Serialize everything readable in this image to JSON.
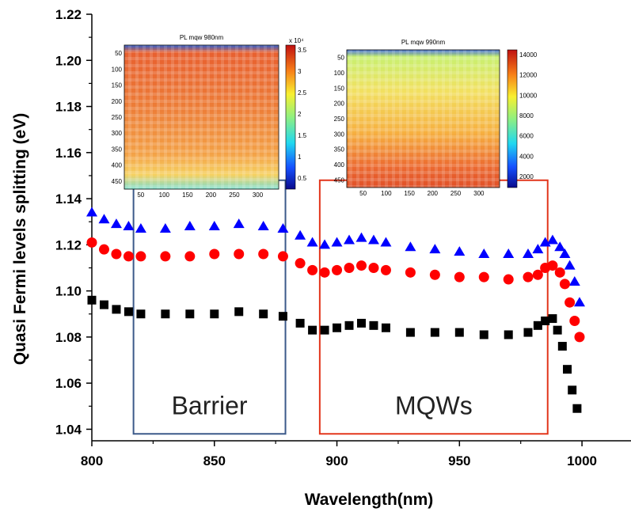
{
  "chart_data": {
    "type": "scatter",
    "xlabel": "Wavelength(nm)",
    "ylabel": "Quasi Fermi levels splitting (eV)",
    "xlim": [
      800,
      1020
    ],
    "ylim": [
      1.035,
      1.22
    ],
    "xticks": [
      800,
      850,
      900,
      950,
      1000
    ],
    "xtick_labels": [
      "800",
      "850",
      "900",
      "950",
      "1000"
    ],
    "yticks": [
      1.04,
      1.06,
      1.08,
      1.1,
      1.12,
      1.14,
      1.16,
      1.18,
      1.2,
      1.22
    ],
    "ytick_labels": [
      "1.04",
      "1.06",
      "1.08",
      "1.10",
      "1.12",
      "1.14",
      "1.16",
      "1.18",
      "1.20",
      "1.22"
    ],
    "series": [
      {
        "marker": "triangle",
        "color": "#0000ff",
        "points": [
          [
            800,
            1.134
          ],
          [
            805,
            1.131
          ],
          [
            810,
            1.129
          ],
          [
            815,
            1.128
          ],
          [
            820,
            1.127
          ],
          [
            830,
            1.127
          ],
          [
            840,
            1.128
          ],
          [
            850,
            1.128
          ],
          [
            860,
            1.129
          ],
          [
            870,
            1.128
          ],
          [
            878,
            1.127
          ],
          [
            885,
            1.124
          ],
          [
            890,
            1.121
          ],
          [
            895,
            1.12
          ],
          [
            900,
            1.121
          ],
          [
            905,
            1.122
          ],
          [
            910,
            1.123
          ],
          [
            915,
            1.122
          ],
          [
            920,
            1.121
          ],
          [
            930,
            1.119
          ],
          [
            940,
            1.118
          ],
          [
            950,
            1.117
          ],
          [
            960,
            1.116
          ],
          [
            970,
            1.116
          ],
          [
            978,
            1.116
          ],
          [
            982,
            1.118
          ],
          [
            985,
            1.121
          ],
          [
            988,
            1.122
          ],
          [
            991,
            1.119
          ],
          [
            993,
            1.116
          ],
          [
            995,
            1.111
          ],
          [
            997,
            1.104
          ],
          [
            999,
            1.095
          ]
        ]
      },
      {
        "marker": "circle",
        "color": "#ff0000",
        "points": [
          [
            800,
            1.121
          ],
          [
            805,
            1.118
          ],
          [
            810,
            1.116
          ],
          [
            815,
            1.115
          ],
          [
            820,
            1.115
          ],
          [
            830,
            1.115
          ],
          [
            840,
            1.115
          ],
          [
            850,
            1.116
          ],
          [
            860,
            1.116
          ],
          [
            870,
            1.116
          ],
          [
            878,
            1.115
          ],
          [
            885,
            1.112
          ],
          [
            890,
            1.109
          ],
          [
            895,
            1.108
          ],
          [
            900,
            1.109
          ],
          [
            905,
            1.11
          ],
          [
            910,
            1.111
          ],
          [
            915,
            1.11
          ],
          [
            920,
            1.109
          ],
          [
            930,
            1.108
          ],
          [
            940,
            1.107
          ],
          [
            950,
            1.106
          ],
          [
            960,
            1.106
          ],
          [
            970,
            1.105
          ],
          [
            978,
            1.106
          ],
          [
            982,
            1.107
          ],
          [
            985,
            1.11
          ],
          [
            988,
            1.111
          ],
          [
            991,
            1.108
          ],
          [
            993,
            1.103
          ],
          [
            995,
            1.095
          ],
          [
            997,
            1.087
          ],
          [
            999,
            1.08
          ]
        ]
      },
      {
        "marker": "square",
        "color": "#000000",
        "points": [
          [
            800,
            1.096
          ],
          [
            805,
            1.094
          ],
          [
            810,
            1.092
          ],
          [
            815,
            1.091
          ],
          [
            820,
            1.09
          ],
          [
            830,
            1.09
          ],
          [
            840,
            1.09
          ],
          [
            850,
            1.09
          ],
          [
            860,
            1.091
          ],
          [
            870,
            1.09
          ],
          [
            878,
            1.089
          ],
          [
            885,
            1.086
          ],
          [
            890,
            1.083
          ],
          [
            895,
            1.083
          ],
          [
            900,
            1.084
          ],
          [
            905,
            1.085
          ],
          [
            910,
            1.086
          ],
          [
            915,
            1.085
          ],
          [
            920,
            1.084
          ],
          [
            930,
            1.082
          ],
          [
            940,
            1.082
          ],
          [
            950,
            1.082
          ],
          [
            960,
            1.081
          ],
          [
            970,
            1.081
          ],
          [
            978,
            1.082
          ],
          [
            982,
            1.085
          ],
          [
            985,
            1.087
          ],
          [
            988,
            1.088
          ],
          [
            990,
            1.083
          ],
          [
            992,
            1.076
          ],
          [
            994,
            1.066
          ],
          [
            996,
            1.057
          ],
          [
            998,
            1.049
          ]
        ]
      }
    ],
    "regions": [
      {
        "label": "Barrier",
        "color": "#3c5a8a",
        "x_range": [
          817,
          879
        ],
        "y_range": [
          1.038,
          1.148
        ]
      },
      {
        "label": "MQWs",
        "color": "#e2361c",
        "x_range": [
          893,
          986
        ],
        "y_range": [
          1.038,
          1.148
        ]
      }
    ],
    "insets": [
      {
        "title": "PL mqw 980nm",
        "y_ticks": [
          "50",
          "100",
          "150",
          "200",
          "250",
          "300",
          "350",
          "400",
          "450"
        ],
        "x_ticks": [
          "50",
          "100",
          "150",
          "200",
          "250",
          "300"
        ],
        "colorbar_ticks": [
          "3.5",
          "3",
          "2.5",
          "2",
          "1.5",
          "1",
          "0.5"
        ],
        "colorbar_exponent": "x 10⁴",
        "dominant_color": "#f08a3a"
      },
      {
        "title": "PL mqw 990nm",
        "y_ticks": [
          "50",
          "100",
          "150",
          "200",
          "250",
          "300",
          "350",
          "400",
          "450"
        ],
        "x_ticks": [
          "50",
          "100",
          "150",
          "200",
          "250",
          "300"
        ],
        "colorbar_ticks": [
          "14000",
          "12000",
          "10000",
          "8000",
          "6000",
          "4000",
          "2000"
        ],
        "colorbar_exponent": "",
        "dominant_color": "#f6c24a"
      }
    ]
  }
}
